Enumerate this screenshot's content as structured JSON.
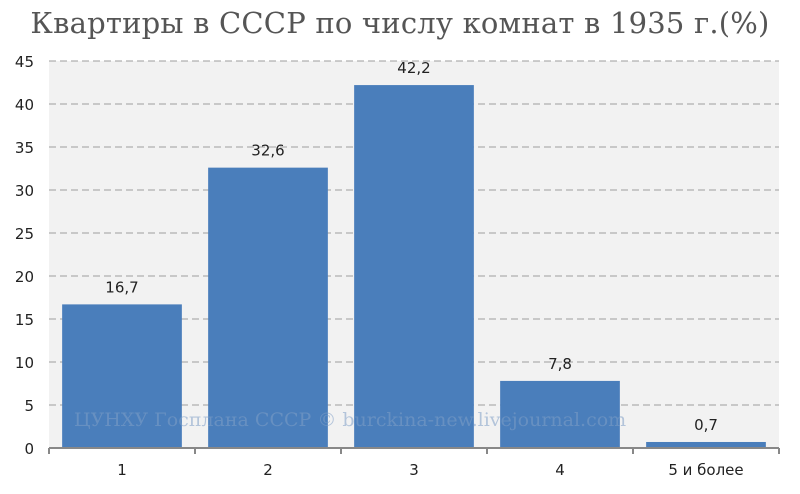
{
  "chart_data": {
    "type": "bar",
    "title": "Квартиры в СССР по числу комнат в 1935 г.(%)",
    "categories": [
      "1",
      "2",
      "3",
      "4",
      "5 и более"
    ],
    "values": [
      16.7,
      32.6,
      42.2,
      7.8,
      0.7
    ],
    "data_labels": [
      "16,7",
      "32,6",
      "42,2",
      "7,8",
      "0,7"
    ],
    "ylim": [
      0,
      45
    ],
    "yticks": [
      0,
      5,
      10,
      15,
      20,
      25,
      30,
      35,
      40,
      45
    ],
    "grid": true,
    "legend": "none",
    "watermark": "ЦУНХУ Госплана СССР © burckina-new.livejournal.com",
    "colors": {
      "bar": "#4a7ebb",
      "plot_bg": "#f2f2f2",
      "grid": "#b0b0b0",
      "title": "#555555"
    }
  }
}
